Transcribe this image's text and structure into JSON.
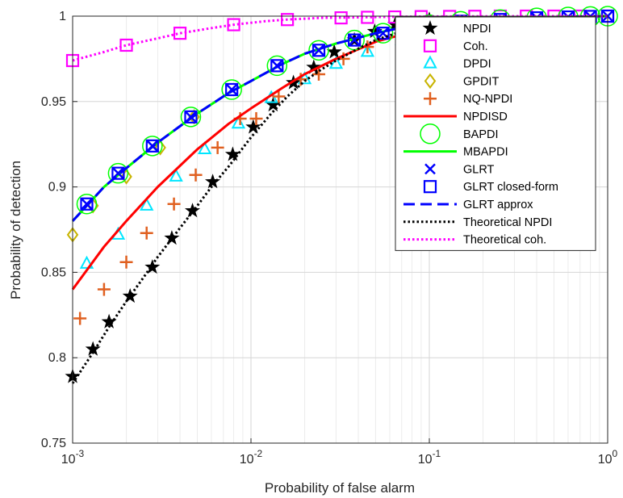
{
  "chart_data": {
    "type": "line",
    "xlabel": "Probability of false alarm",
    "ylabel": "Probability of detection",
    "xscale": "log",
    "xlim": [
      0.001,
      1
    ],
    "ylim": [
      0.75,
      1
    ],
    "grid": true,
    "legend_position": "top-right",
    "x_ticks": [
      {
        "base": "10",
        "exp": "-3"
      },
      {
        "base": "10",
        "exp": "-2"
      },
      {
        "base": "10",
        "exp": "-1"
      },
      {
        "base": "10",
        "exp": "0"
      }
    ],
    "y_ticks": [
      "0.75",
      "0.8",
      "0.85",
      "0.9",
      "0.95",
      "1"
    ],
    "series": [
      {
        "name": "NPDI",
        "color": "#000000",
        "line": "none",
        "marker": "star",
        "x": [
          0.001,
          0.0013,
          0.0016,
          0.0021,
          0.0028,
          0.0036,
          0.0047,
          0.0061,
          0.0079,
          0.0103,
          0.0133,
          0.0173,
          0.0225,
          0.0293,
          0.038,
          0.0494,
          0.0642,
          0.0834,
          0.1
        ],
        "y": [
          0.789,
          0.805,
          0.821,
          0.836,
          0.853,
          0.87,
          0.886,
          0.903,
          0.919,
          0.935,
          0.948,
          0.961,
          0.97,
          0.979,
          0.986,
          0.991,
          0.995,
          0.997,
          0.998
        ]
      },
      {
        "name": "Coh.",
        "color": "#ff00ff",
        "line": "none",
        "marker": "square",
        "x": [
          0.001,
          0.002,
          0.004,
          0.008,
          0.016,
          0.032,
          0.045,
          0.064,
          0.09,
          0.13,
          0.18,
          0.25,
          0.35,
          0.5,
          0.7,
          1.0
        ],
        "y": [
          0.974,
          0.983,
          0.99,
          0.995,
          0.998,
          0.999,
          0.9993,
          0.9995,
          0.9997,
          0.9998,
          0.9999,
          1.0,
          1.0,
          1.0,
          1.0,
          1.0
        ]
      },
      {
        "name": "DPDI",
        "color": "#00e6ff",
        "line": "none",
        "marker": "triangle",
        "x": [
          0.0012,
          0.0018,
          0.0026,
          0.0038,
          0.0055,
          0.0085,
          0.013,
          0.02,
          0.03,
          0.045,
          0.07
        ],
        "y": [
          0.855,
          0.872,
          0.889,
          0.906,
          0.922,
          0.937,
          0.952,
          0.963,
          0.972,
          0.979,
          0.986
        ]
      },
      {
        "name": "GPDIT",
        "color": "#c8b400",
        "line": "none",
        "marker": "diamond",
        "x": [
          0.001,
          0.0013,
          0.002,
          0.0031,
          0.0048
        ],
        "y": [
          0.872,
          0.889,
          0.906,
          0.923,
          0.941
        ]
      },
      {
        "name": "NQ-NPDI",
        "color": "#e06020",
        "line": "none",
        "marker": "plus",
        "x": [
          0.0011,
          0.0015,
          0.002,
          0.0026,
          0.0037,
          0.0049,
          0.0065,
          0.0087,
          0.0107,
          0.0143,
          0.019,
          0.024,
          0.033,
          0.045
        ],
        "y": [
          0.823,
          0.84,
          0.856,
          0.873,
          0.89,
          0.907,
          0.923,
          0.94,
          0.94,
          0.953,
          0.963,
          0.966,
          0.975,
          0.982
        ]
      },
      {
        "name": "NPDISD",
        "color": "#ff0000",
        "line": "solid",
        "marker": "none",
        "x": [
          0.001,
          0.0015,
          0.002,
          0.003,
          0.005,
          0.0075,
          0.01,
          0.015,
          0.02,
          0.03,
          0.05,
          0.075,
          0.1,
          0.2,
          0.5,
          1.0
        ],
        "y": [
          0.84,
          0.865,
          0.88,
          0.9,
          0.922,
          0.937,
          0.946,
          0.958,
          0.966,
          0.975,
          0.985,
          0.99,
          0.993,
          0.997,
          0.999,
          1.0
        ]
      },
      {
        "name": "BAPDI",
        "color": "#00ff00",
        "line": "none",
        "marker": "circle",
        "x": [
          0.0012,
          0.0018,
          0.0028,
          0.0046,
          0.0078,
          0.014,
          0.024,
          0.038,
          0.055,
          0.075,
          0.1,
          0.15,
          0.25,
          0.4,
          0.6,
          0.8,
          1.0
        ],
        "y": [
          0.89,
          0.908,
          0.924,
          0.941,
          0.957,
          0.971,
          0.98,
          0.986,
          0.99,
          0.993,
          0.995,
          0.997,
          0.998,
          0.999,
          0.9995,
          0.9998,
          1.0
        ]
      },
      {
        "name": "MBAPDI",
        "color": "#00ff00",
        "line": "solid",
        "marker": "none",
        "x": [
          0.001,
          0.0015,
          0.002,
          0.003,
          0.005,
          0.0075,
          0.01,
          0.015,
          0.02,
          0.03,
          0.05,
          0.075,
          0.1,
          0.2,
          0.5,
          1.0
        ],
        "y": [
          0.88,
          0.9,
          0.911,
          0.926,
          0.943,
          0.955,
          0.962,
          0.972,
          0.978,
          0.984,
          0.99,
          0.994,
          0.996,
          0.998,
          0.9995,
          1.0
        ]
      },
      {
        "name": "GLRT",
        "color": "#0000ff",
        "line": "none",
        "marker": "x",
        "x": [
          0.0012,
          0.0018,
          0.0028,
          0.0046,
          0.0078,
          0.014,
          0.024,
          0.038,
          0.055,
          0.075,
          0.1,
          0.15,
          0.25,
          0.4,
          0.6,
          0.8,
          1.0
        ],
        "y": [
          0.89,
          0.908,
          0.924,
          0.941,
          0.957,
          0.971,
          0.98,
          0.986,
          0.99,
          0.993,
          0.995,
          0.997,
          0.998,
          0.999,
          0.9995,
          0.9998,
          1.0
        ]
      },
      {
        "name": "GLRT closed-form",
        "color": "#0000ff",
        "line": "none",
        "marker": "square",
        "x": [
          0.0012,
          0.0018,
          0.0028,
          0.0046,
          0.0078,
          0.014,
          0.024,
          0.038,
          0.055,
          0.075,
          0.1,
          0.15,
          0.25,
          0.4,
          0.6,
          0.8,
          1.0
        ],
        "y": [
          0.89,
          0.908,
          0.924,
          0.941,
          0.957,
          0.971,
          0.98,
          0.986,
          0.99,
          0.993,
          0.995,
          0.997,
          0.998,
          0.999,
          0.9995,
          0.9998,
          1.0
        ]
      },
      {
        "name": "GLRT approx",
        "color": "#0000ff",
        "line": "dashed",
        "marker": "none",
        "x": [
          0.001,
          0.0015,
          0.002,
          0.003,
          0.005,
          0.0075,
          0.01,
          0.015,
          0.02,
          0.03,
          0.05,
          0.075,
          0.1,
          0.2,
          0.5,
          1.0
        ],
        "y": [
          0.88,
          0.9,
          0.911,
          0.926,
          0.943,
          0.955,
          0.962,
          0.972,
          0.978,
          0.984,
          0.99,
          0.994,
          0.996,
          0.998,
          0.9995,
          1.0
        ]
      },
      {
        "name": "Theoretical NPDI",
        "color": "#000000",
        "line": "dotted",
        "marker": "none",
        "x": [
          0.001,
          0.0013,
          0.0016,
          0.002,
          0.0025,
          0.003,
          0.004,
          0.005,
          0.006,
          0.0075,
          0.01,
          0.013,
          0.016,
          0.02,
          0.025,
          0.03,
          0.04,
          0.05,
          0.07,
          0.1,
          0.15,
          0.2,
          0.3,
          0.5,
          0.7,
          1.0
        ],
        "y": [
          0.785,
          0.803,
          0.818,
          0.833,
          0.847,
          0.859,
          0.876,
          0.889,
          0.9,
          0.912,
          0.929,
          0.943,
          0.953,
          0.962,
          0.969,
          0.974,
          0.981,
          0.986,
          0.991,
          0.995,
          0.997,
          0.998,
          0.999,
          0.9995,
          0.9998,
          1.0
        ]
      },
      {
        "name": "Theoretical coh.",
        "color": "#ff00ff",
        "line": "dotted",
        "marker": "none",
        "x": [
          0.001,
          0.0015,
          0.002,
          0.003,
          0.004,
          0.006,
          0.008,
          0.012,
          0.016,
          0.025,
          0.04,
          0.06,
          0.1,
          0.2,
          0.5,
          1.0
        ],
        "y": [
          0.974,
          0.979,
          0.983,
          0.987,
          0.99,
          0.993,
          0.995,
          0.997,
          0.998,
          0.999,
          0.9993,
          0.9996,
          0.9998,
          0.9999,
          1.0,
          1.0
        ]
      }
    ]
  }
}
